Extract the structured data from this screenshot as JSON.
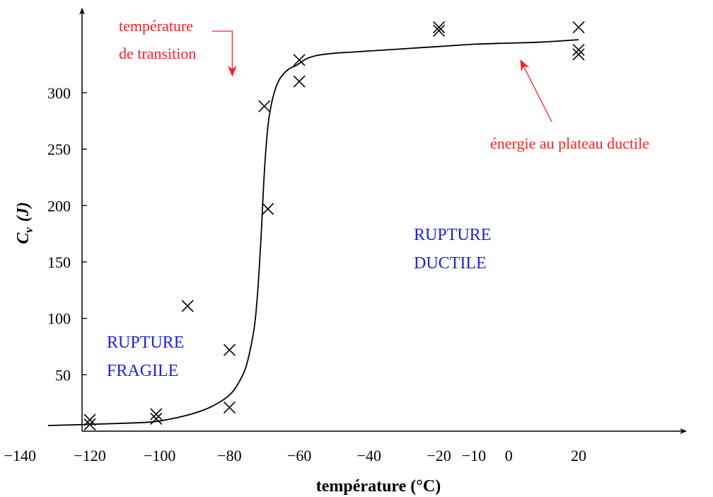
{
  "chart_data": {
    "type": "scatter",
    "title": "",
    "xlabel": "température (°C)",
    "ylabel": "Cv (J)",
    "ylabel_main": "C",
    "ylabel_sub": "v",
    "ylabel_unit": "(J)",
    "xlim": [
      -140,
      20
    ],
    "ylim": [
      0,
      350
    ],
    "x_tick_labels": [
      {
        "value": -140,
        "label": "−140"
      },
      {
        "value": -120,
        "label": "−120"
      },
      {
        "value": -100,
        "label": "−100"
      },
      {
        "value": -80,
        "label": "−80"
      },
      {
        "value": -60,
        "label": "−60"
      },
      {
        "value": -40,
        "label": "−40"
      },
      {
        "value": -20,
        "label": "−20"
      },
      {
        "value": -10,
        "label": "−10"
      },
      {
        "value": 0,
        "label": "0"
      },
      {
        "value": 20,
        "label": "20"
      }
    ],
    "y_ticks": [
      50,
      100,
      150,
      200,
      250,
      300
    ],
    "grid": false,
    "series": [
      {
        "kind": "points",
        "marker": "x",
        "color": "#000000",
        "x": [
          -120,
          -120,
          -101,
          -101,
          -92,
          -80,
          -80,
          -70,
          -69,
          -60,
          -60,
          -20,
          -20,
          20,
          20,
          20
        ],
        "y": [
          10,
          6,
          15,
          11,
          111,
          72,
          21,
          288,
          197,
          329,
          310,
          358,
          355,
          358,
          338,
          334
        ]
      },
      {
        "kind": "curve",
        "color": "#000000",
        "x": [
          -132,
          -120,
          -110,
          -103,
          -100,
          -95,
          -90,
          -85,
          -80,
          -77,
          -75,
          -73,
          -72,
          -71,
          -70,
          -69,
          -68,
          -67,
          -66,
          -65,
          -63,
          -61,
          -60,
          -58,
          -55,
          -50,
          -45,
          -40,
          -30,
          -20,
          -10,
          0,
          10,
          20
        ],
        "y": [
          5,
          6,
          7,
          8,
          9,
          12,
          16,
          22,
          32,
          45,
          60,
          90,
          120,
          170,
          230,
          270,
          290,
          302,
          310,
          315,
          321,
          324,
          326,
          330,
          333,
          335,
          336,
          337,
          339,
          341,
          343,
          344,
          345,
          347
        ]
      }
    ],
    "annotations": [
      {
        "text_lines": [
          "température",
          "de transition"
        ],
        "color": "#ff2020",
        "arrow_to": {
          "x": -79,
          "y": 310
        }
      },
      {
        "text_lines": [
          "énergie au plateau ductile"
        ],
        "color": "#ff2020",
        "arrow_to": {
          "x": 3,
          "y": 345
        }
      },
      {
        "text_lines": [
          "RUPTURE",
          "DUCTILE"
        ],
        "color": "#2020e0"
      },
      {
        "text_lines": [
          "RUPTURE",
          "FRAGILE"
        ],
        "color": "#2020e0"
      }
    ]
  }
}
